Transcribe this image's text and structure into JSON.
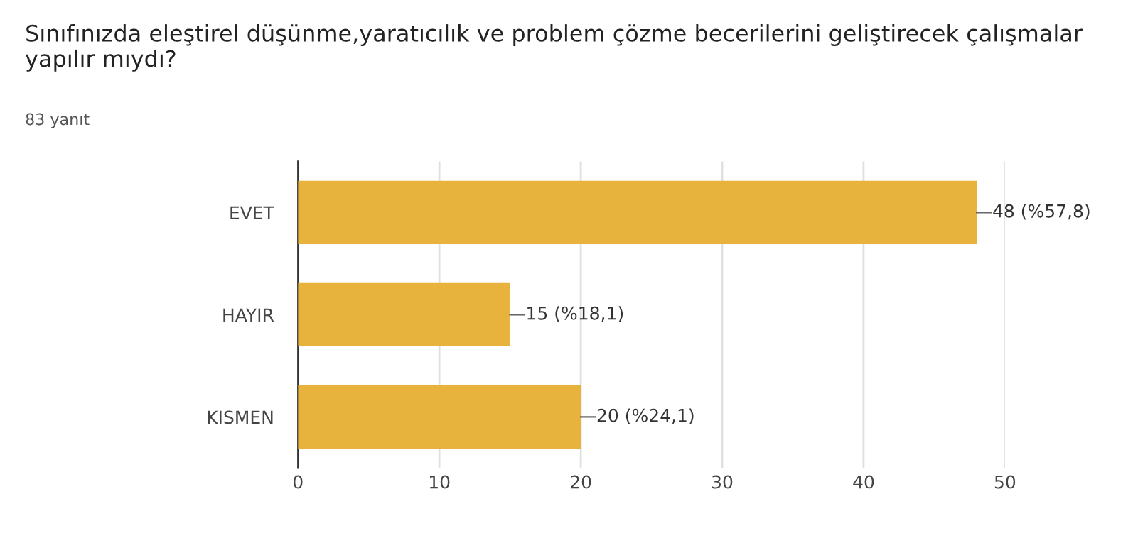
{
  "chart_data": {
    "type": "bar",
    "orientation": "horizontal",
    "title": "Sınıfınızda eleştirel düşünme,yaratıcılık ve problem çözme becerilerini geliştirecek çalışmalar yapılır mıydı?",
    "subtitle": "83 yanıt",
    "categories": [
      "EVET",
      "HAYIR",
      "KISMEN"
    ],
    "values": [
      48,
      15,
      20
    ],
    "value_labels": [
      "48 (%57,8)",
      "15 (%18,1)",
      "20 (%24,1)"
    ],
    "color": "#e8b33c",
    "xlim": [
      0,
      50
    ],
    "xticks": [
      0,
      10,
      20,
      30,
      40,
      50
    ],
    "grid": "x"
  }
}
